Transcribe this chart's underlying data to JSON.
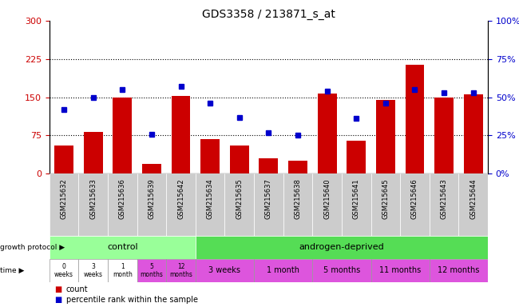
{
  "title": "GDS3358 / 213871_s_at",
  "samples": [
    "GSM215632",
    "GSM215633",
    "GSM215636",
    "GSM215639",
    "GSM215642",
    "GSM215634",
    "GSM215635",
    "GSM215637",
    "GSM215638",
    "GSM215640",
    "GSM215641",
    "GSM215645",
    "GSM215646",
    "GSM215643",
    "GSM215644"
  ],
  "counts": [
    55,
    82,
    150,
    20,
    152,
    68,
    55,
    30,
    25,
    158,
    65,
    145,
    213,
    150,
    155
  ],
  "percentile": [
    42,
    50,
    55,
    26,
    57,
    46,
    37,
    27,
    25,
    54,
    36,
    46,
    55,
    53,
    53
  ],
  "bar_color": "#cc0000",
  "dot_color": "#0000cc",
  "ylim_left": [
    0,
    300
  ],
  "ylim_right": [
    0,
    100
  ],
  "yticks_left": [
    0,
    75,
    150,
    225,
    300
  ],
  "yticks_right": [
    0,
    25,
    50,
    75,
    100
  ],
  "ytick_labels_right": [
    "0%",
    "25%",
    "50%",
    "75%",
    "100%"
  ],
  "hlines": [
    75,
    150,
    225
  ],
  "legend_items": [
    {
      "color": "#cc0000",
      "label": "count"
    },
    {
      "color": "#0000cc",
      "label": "percentile rank within the sample"
    }
  ],
  "tick_label_color_left": "#cc0000",
  "tick_label_color_right": "#0000cc",
  "bg_color": "#ffffff",
  "control_color": "#99ff99",
  "androgen_color": "#55dd55",
  "time_color_white": "#ffffff",
  "time_color_purple": "#dd55dd",
  "xticklabel_bg": "#cccccc",
  "time_labels_control": [
    "0\nweeks",
    "3\nweeks",
    "1\nmonth",
    "5\nmonths",
    "12\nmonths"
  ],
  "time_colors_control": [
    "#ffffff",
    "#ffffff",
    "#ffffff",
    "#dd55dd",
    "#dd55dd"
  ],
  "time_labels_androgen": [
    "3 weeks",
    "1 month",
    "5 months",
    "11 months",
    "12 months"
  ],
  "time_colors_androgen": [
    "#dd55dd",
    "#dd55dd",
    "#dd55dd",
    "#dd55dd",
    "#dd55dd"
  ],
  "androgen_starts": [
    5,
    7,
    9,
    11,
    13
  ],
  "androgen_ends": [
    7,
    9,
    11,
    13,
    15
  ]
}
